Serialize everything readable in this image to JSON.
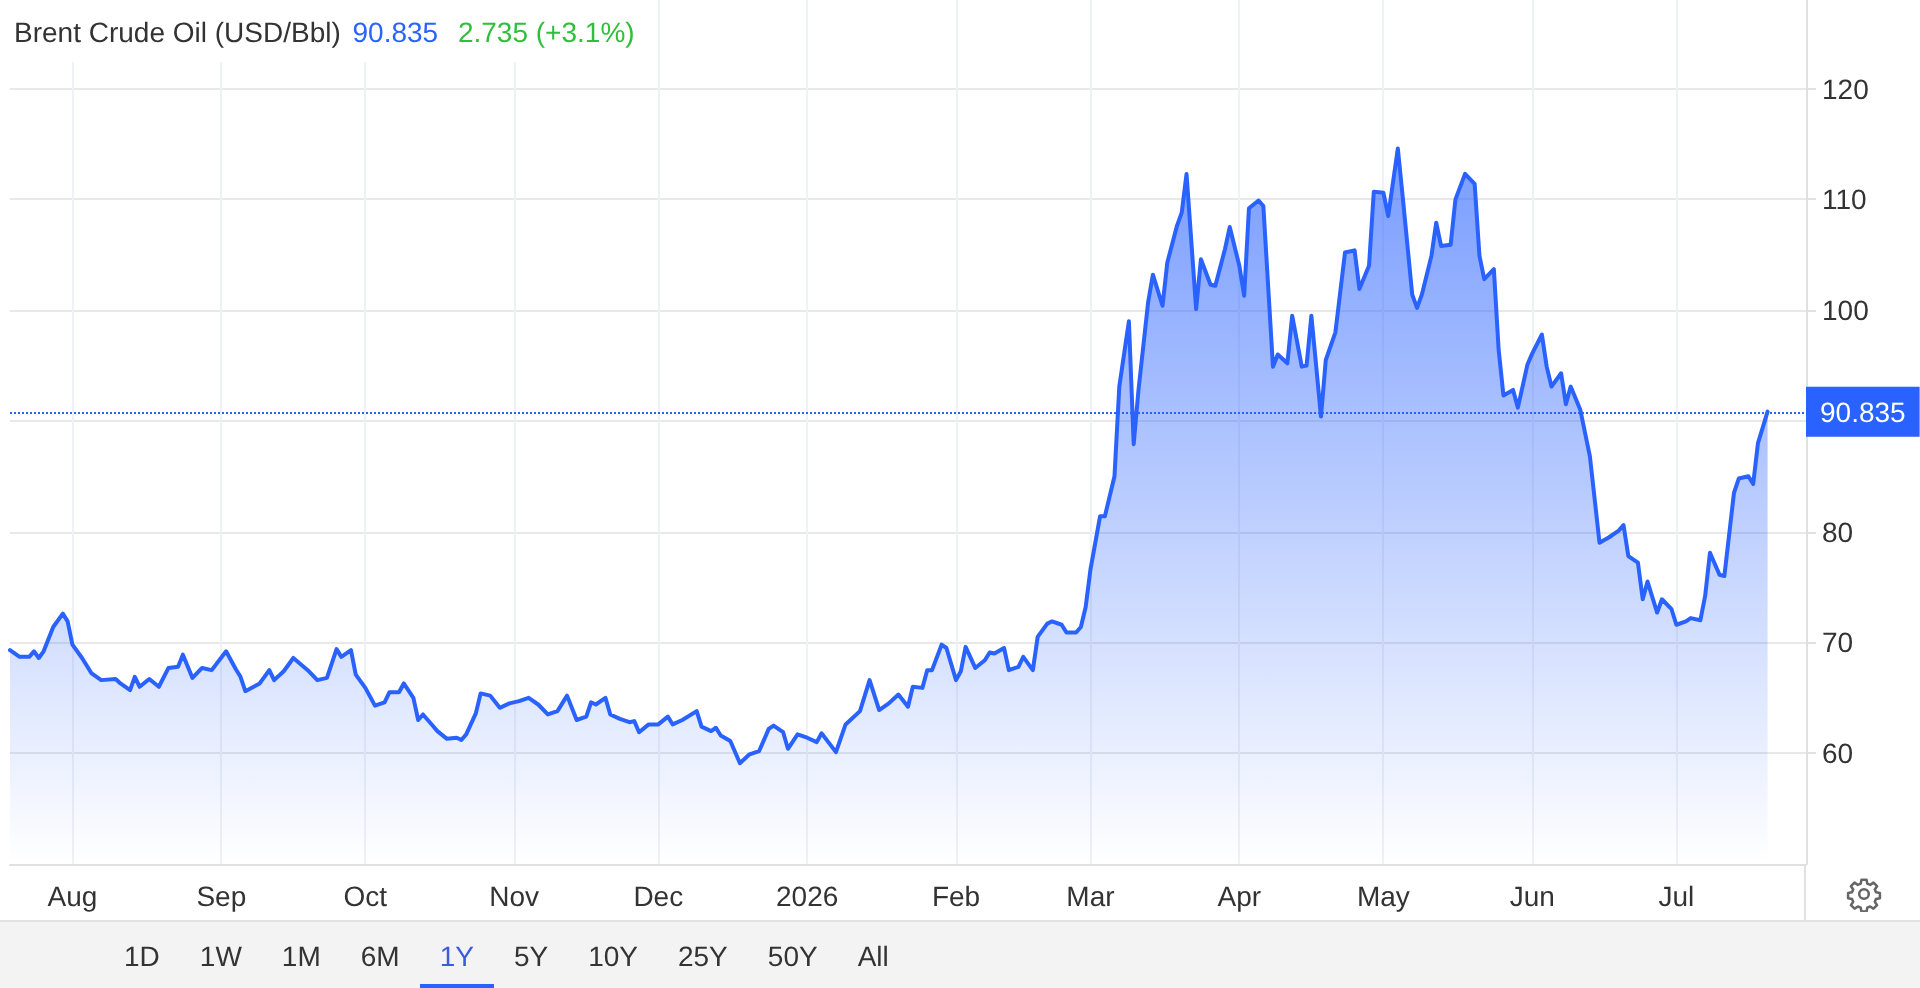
{
  "chart_data": {
    "type": "area",
    "title": "Brent Crude Oil (USD/Bbl)",
    "annotations": [
      "90.835",
      "2.735 (+3.1%)",
      "1D",
      "1W",
      "1M",
      "6M",
      "1Y",
      "5Y",
      "10Y",
      "25Y",
      "50Y",
      "All"
    ],
    "x": [
      "2025-07-19",
      "2025-07-21",
      "2025-07-23",
      "2025-07-24",
      "2025-07-25",
      "2025-07-26",
      "2025-07-28",
      "2025-07-30",
      "2025-07-31",
      "2025-08-01",
      "2025-08-03",
      "2025-08-05",
      "2025-08-07",
      "2025-08-10",
      "2025-08-11",
      "2025-08-13",
      "2025-08-14",
      "2025-08-15",
      "2025-08-17",
      "2025-08-19",
      "2025-08-21",
      "2025-08-23",
      "2025-08-24",
      "2025-08-26",
      "2025-08-28",
      "2025-08-30",
      "2025-09-02",
      "2025-09-04",
      "2025-09-05",
      "2025-09-06",
      "2025-09-09",
      "2025-09-11",
      "2025-09-12",
      "2025-09-14",
      "2025-09-16",
      "2025-09-19",
      "2025-09-21",
      "2025-09-23",
      "2025-09-25",
      "2025-09-26",
      "2025-09-28",
      "2025-09-29",
      "2025-10-01",
      "2025-10-03",
      "2025-10-05",
      "2025-10-06",
      "2025-10-08",
      "2025-10-09",
      "2025-10-11",
      "2025-10-12",
      "2025-10-13",
      "2025-10-15",
      "2025-10-16",
      "2025-10-18",
      "2025-10-20",
      "2025-10-21",
      "2025-10-22",
      "2025-10-24",
      "2025-10-25",
      "2025-10-27",
      "2025-10-29",
      "2025-10-31",
      "2025-11-02",
      "2025-11-04",
      "2025-11-06",
      "2025-11-08",
      "2025-11-10",
      "2025-11-12",
      "2025-11-14",
      "2025-11-16",
      "2025-11-17",
      "2025-11-18",
      "2025-11-20",
      "2025-11-21",
      "2025-11-23",
      "2025-11-25",
      "2025-11-26",
      "2025-11-27",
      "2025-11-29",
      "2025-12-01",
      "2025-12-03",
      "2025-12-04",
      "2025-12-06",
      "2025-12-09",
      "2025-12-10",
      "2025-12-12",
      "2025-12-13",
      "2025-12-14",
      "2025-12-16",
      "2025-12-18",
      "2025-12-20",
      "2025-12-22",
      "2025-12-24",
      "2025-12-25",
      "2025-12-27",
      "2025-12-28",
      "2025-12-30",
      "2026-01-01",
      "2026-01-03",
      "2026-01-04",
      "2026-01-07",
      "2026-01-09",
      "2026-01-12",
      "2026-01-14",
      "2026-01-16",
      "2026-01-18",
      "2026-01-20",
      "2026-01-22",
      "2026-01-23",
      "2026-01-25",
      "2026-01-26",
      "2026-01-27",
      "2026-01-29",
      "2026-01-30",
      "2026-02-01",
      "2026-02-02",
      "2026-02-03",
      "2026-02-05",
      "2026-02-07",
      "2026-02-08",
      "2026-02-09",
      "2026-02-11",
      "2026-02-12",
      "2026-02-14",
      "2026-02-15",
      "2026-02-17",
      "2026-02-18",
      "2026-02-20",
      "2026-02-21",
      "2026-02-23",
      "2026-02-24",
      "2026-02-26",
      "2026-02-27",
      "2026-02-28",
      "2026-03-01",
      "2026-03-03",
      "2026-03-04",
      "2026-03-06",
      "2026-03-07",
      "2026-03-09",
      "2026-03-10",
      "2026-03-11",
      "2026-03-13",
      "2026-03-14",
      "2026-03-16",
      "2026-03-17",
      "2026-03-19",
      "2026-03-20",
      "2026-03-21",
      "2026-03-23",
      "2026-03-24",
      "2026-03-26",
      "2026-03-27",
      "2026-03-29",
      "2026-03-30",
      "2026-04-01",
      "2026-04-02",
      "2026-04-03",
      "2026-04-05",
      "2026-04-06",
      "2026-04-08",
      "2026-04-09",
      "2026-04-11",
      "2026-04-12",
      "2026-04-14",
      "2026-04-15",
      "2026-04-16",
      "2026-04-18",
      "2026-04-19",
      "2026-04-21",
      "2026-04-22",
      "2026-04-23",
      "2026-04-25",
      "2026-04-26",
      "2026-04-28",
      "2026-04-29",
      "2026-05-01",
      "2026-05-02",
      "2026-05-04",
      "2026-05-05",
      "2026-05-07",
      "2026-05-08",
      "2026-05-09",
      "2026-05-11",
      "2026-05-12",
      "2026-05-13",
      "2026-05-15",
      "2026-05-16",
      "2026-05-18",
      "2026-05-20",
      "2026-05-21",
      "2026-05-22",
      "2026-05-24",
      "2026-05-25",
      "2026-05-26",
      "2026-05-28",
      "2026-05-29",
      "2026-05-31",
      "2026-06-01",
      "2026-06-03",
      "2026-06-04",
      "2026-06-05",
      "2026-06-07",
      "2026-06-08",
      "2026-06-09",
      "2026-06-11",
      "2026-06-13",
      "2026-06-15",
      "2026-06-17",
      "2026-06-19",
      "2026-06-20",
      "2026-06-21",
      "2026-06-23",
      "2026-06-24",
      "2026-06-25",
      "2026-06-27",
      "2026-06-28",
      "2026-06-30",
      "2026-07-01",
      "2026-07-03",
      "2026-07-04",
      "2026-07-06",
      "2026-07-07",
      "2026-07-08",
      "2026-07-10",
      "2026-07-11",
      "2026-07-13",
      "2026-07-14",
      "2026-07-16",
      "2026-07-17",
      "2026-07-18",
      "2026-07-20"
    ],
    "values": [
      69.3,
      68.7,
      68.7,
      69.2,
      68.6,
      69.2,
      71.4,
      72.6,
      71.9,
      69.8,
      68.6,
      67.2,
      66.6,
      66.7,
      66.3,
      65.7,
      66.9,
      66.0,
      66.7,
      66.0,
      67.7,
      67.8,
      68.9,
      66.8,
      67.7,
      67.5,
      69.2,
      67.6,
      66.9,
      65.6,
      66.3,
      67.5,
      66.6,
      67.4,
      68.6,
      67.5,
      66.6,
      66.8,
      69.4,
      68.7,
      69.3,
      67.1,
      65.9,
      64.3,
      64.6,
      65.5,
      65.5,
      66.3,
      65.0,
      63.0,
      63.5,
      62.5,
      62.0,
      61.3,
      61.4,
      61.2,
      61.7,
      63.6,
      65.4,
      65.2,
      64.1,
      64.5,
      64.7,
      65.0,
      64.4,
      63.5,
      63.8,
      65.2,
      63.0,
      63.3,
      64.6,
      64.4,
      65.0,
      63.5,
      63.1,
      62.8,
      62.9,
      61.9,
      62.6,
      62.6,
      63.3,
      62.6,
      63.0,
      63.8,
      62.4,
      62.0,
      62.3,
      61.6,
      61.1,
      59.1,
      59.9,
      60.2,
      62.2,
      62.5,
      61.9,
      60.4,
      61.7,
      61.4,
      61.0,
      61.8,
      60.1,
      62.6,
      63.8,
      66.6,
      63.9,
      64.5,
      65.3,
      64.2,
      66.0,
      65.9,
      67.5,
      67.5,
      69.8,
      69.5,
      66.6,
      67.4,
      69.6,
      67.7,
      68.4,
      69.1,
      69.0,
      69.5,
      67.5,
      67.8,
      68.7,
      67.5,
      70.5,
      71.7,
      71.9,
      71.6,
      70.9,
      70.9,
      71.4,
      73.2,
      76.6,
      81.4,
      81.4,
      85.0,
      93.1,
      99.0,
      87.9,
      92.8,
      100.7,
      103.2,
      100.4,
      104.3,
      107.6,
      108.8,
      112.3,
      100.1,
      104.6,
      102.3,
      102.2,
      105.5,
      107.5,
      104.0,
      101.3,
      109.2,
      109.9,
      109.4,
      94.9,
      96.0,
      95.2,
      99.5,
      94.9,
      95.0,
      99.5,
      90.4,
      95.5,
      98.0,
      101.6,
      105.2,
      105.4,
      101.9,
      104.0,
      110.7,
      110.6,
      108.5,
      114.6,
      110.3,
      101.4,
      100.2,
      101.4,
      104.9,
      107.9,
      105.8,
      105.9,
      110.0,
      112.3,
      111.4,
      104.9,
      102.8,
      103.7,
      96.4,
      92.3,
      92.8,
      91.2,
      95.1,
      96.1,
      97.8,
      94.9,
      93.1,
      94.3,
      91.5,
      93.1,
      91.0,
      86.8,
      79.0,
      79.5,
      80.1,
      80.6,
      77.8,
      77.2,
      73.9,
      75.5,
      72.7,
      73.9,
      73.0,
      71.6,
      71.9,
      72.2,
      72.0,
      74.2,
      78.1,
      76.1,
      76.0,
      83.5,
      84.8,
      85.0,
      84.3,
      88.0,
      90.835
    ],
    "color": "#2962ff",
    "xlim": [
      "2025-07-19",
      "2026-07-28"
    ],
    "xticks": [
      {
        "value": "2025-08-01",
        "label": "Aug"
      },
      {
        "value": "2025-09-01",
        "label": "Sep"
      },
      {
        "value": "2025-10-01",
        "label": "Oct"
      },
      {
        "value": "2025-11-01",
        "label": "Nov"
      },
      {
        "value": "2025-12-01",
        "label": "Dec"
      },
      {
        "value": "2026-01-01",
        "label": "2026"
      },
      {
        "value": "2026-02-01",
        "label": "Feb"
      },
      {
        "value": "2026-03-01",
        "label": "Mar"
      },
      {
        "value": "2026-04-01",
        "label": "Apr"
      },
      {
        "value": "2026-05-01",
        "label": "May"
      },
      {
        "value": "2026-06-01",
        "label": "Jun"
      },
      {
        "value": "2026-07-01",
        "label": "Jul"
      }
    ],
    "ylim": [
      50,
      128
    ],
    "yticks": [
      60,
      70,
      80,
      {
        "value": 90,
        "label": null
      },
      100,
      110,
      120
    ],
    "ref_lines": [
      {
        "axis": "y",
        "value": 90.835,
        "label": "90.835",
        "color": "#2962ff",
        "line_style": "dotted"
      }
    ],
    "grid": true,
    "marker": "none"
  }
}
